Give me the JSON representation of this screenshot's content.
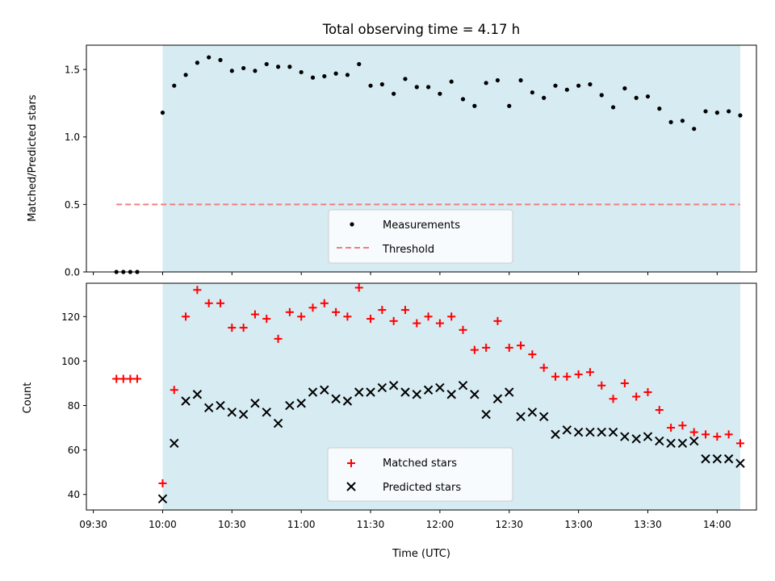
{
  "chart_data": [
    {
      "type": "scatter",
      "title": "Total observing time = 4.17 h",
      "xlabel": "",
      "ylabel": "Matched/Predicted stars",
      "ylim": [
        0,
        1.68
      ],
      "yticks": [
        "0.0",
        "0.5",
        "1.0",
        "1.5"
      ],
      "shaded_span": [
        "10:00",
        "14:10"
      ],
      "legend": "lower center",
      "series": [
        {
          "name": "Measurements",
          "marker": "dot",
          "color": "#000000",
          "x": [
            "09:40",
            "09:43",
            "09:46",
            "09:49",
            "10:00",
            "10:05",
            "10:10",
            "10:15",
            "10:20",
            "10:25",
            "10:30",
            "10:35",
            "10:40",
            "10:45",
            "10:50",
            "10:55",
            "11:00",
            "11:05",
            "11:10",
            "11:15",
            "11:20",
            "11:25",
            "11:30",
            "11:35",
            "11:40",
            "11:45",
            "11:50",
            "11:55",
            "12:00",
            "12:05",
            "12:10",
            "12:15",
            "12:20",
            "12:25",
            "12:30",
            "12:35",
            "12:40",
            "12:45",
            "12:50",
            "12:55",
            "13:00",
            "13:05",
            "13:10",
            "13:15",
            "13:20",
            "13:25",
            "13:30",
            "13:35",
            "13:40",
            "13:45",
            "13:50",
            "13:55",
            "14:00",
            "14:05",
            "14:10"
          ],
          "y": [
            0.0,
            0.0,
            0.0,
            0.0,
            1.18,
            1.38,
            1.46,
            1.55,
            1.59,
            1.57,
            1.49,
            1.51,
            1.49,
            1.54,
            1.52,
            1.52,
            1.48,
            1.44,
            1.45,
            1.47,
            1.46,
            1.54,
            1.38,
            1.39,
            1.32,
            1.43,
            1.37,
            1.37,
            1.32,
            1.41,
            1.28,
            1.23,
            1.4,
            1.42,
            1.23,
            1.42,
            1.33,
            1.29,
            1.38,
            1.35,
            1.38,
            1.39,
            1.31,
            1.22,
            1.36,
            1.29,
            1.3,
            1.21,
            1.11,
            1.12,
            1.06,
            1.19,
            1.18,
            1.19,
            1.16
          ]
        },
        {
          "name": "Threshold",
          "marker": "dashed-line",
          "color": "#f08080",
          "x": [
            "09:40",
            "14:10"
          ],
          "y": [
            0.5,
            0.5
          ]
        }
      ]
    },
    {
      "type": "scatter",
      "title": "",
      "xlabel": "Time (UTC)",
      "ylabel": "Count",
      "ylim": [
        33,
        135
      ],
      "yticks": [
        "40",
        "60",
        "80",
        "100",
        "120"
      ],
      "xticks": [
        "09:30",
        "10:00",
        "10:30",
        "11:00",
        "11:30",
        "12:00",
        "12:30",
        "13:00",
        "13:30",
        "14:00"
      ],
      "shaded_span": [
        "10:00",
        "14:10"
      ],
      "legend": "lower center",
      "series": [
        {
          "name": "Matched stars",
          "marker": "plus",
          "color": "#ff0000",
          "x": [
            "09:40",
            "09:43",
            "09:46",
            "09:49",
            "10:00",
            "10:05",
            "10:10",
            "10:15",
            "10:20",
            "10:25",
            "10:30",
            "10:35",
            "10:40",
            "10:45",
            "10:50",
            "10:55",
            "11:00",
            "11:05",
            "11:10",
            "11:15",
            "11:20",
            "11:25",
            "11:30",
            "11:35",
            "11:40",
            "11:45",
            "11:50",
            "11:55",
            "12:00",
            "12:05",
            "12:10",
            "12:15",
            "12:20",
            "12:25",
            "12:30",
            "12:35",
            "12:40",
            "12:45",
            "12:50",
            "12:55",
            "13:00",
            "13:05",
            "13:10",
            "13:15",
            "13:20",
            "13:25",
            "13:30",
            "13:35",
            "13:40",
            "13:45",
            "13:50",
            "13:55",
            "14:00",
            "14:05",
            "14:10"
          ],
          "y": [
            92,
            92,
            92,
            92,
            45,
            87,
            120,
            132,
            126,
            126,
            115,
            115,
            121,
            119,
            110,
            122,
            120,
            124,
            126,
            122,
            120,
            133,
            119,
            123,
            118,
            123,
            117,
            120,
            117,
            120,
            114,
            105,
            106,
            118,
            106,
            107,
            103,
            97,
            93,
            93,
            94,
            95,
            89,
            83,
            90,
            84,
            86,
            78,
            70,
            71,
            68,
            67,
            66,
            67,
            63
          ]
        },
        {
          "name": "Predicted stars",
          "marker": "x",
          "color": "#000000",
          "x": [
            "10:00",
            "10:05",
            "10:10",
            "10:15",
            "10:20",
            "10:25",
            "10:30",
            "10:35",
            "10:40",
            "10:45",
            "10:50",
            "10:55",
            "11:00",
            "11:05",
            "11:10",
            "11:15",
            "11:20",
            "11:25",
            "11:30",
            "11:35",
            "11:40",
            "11:45",
            "11:50",
            "11:55",
            "12:00",
            "12:05",
            "12:10",
            "12:15",
            "12:20",
            "12:25",
            "12:30",
            "12:35",
            "12:40",
            "12:45",
            "12:50",
            "12:55",
            "13:00",
            "13:05",
            "13:10",
            "13:15",
            "13:20",
            "13:25",
            "13:30",
            "13:35",
            "13:40",
            "13:45",
            "13:50",
            "13:55",
            "14:00",
            "14:05",
            "14:10"
          ],
          "y": [
            38,
            63,
            82,
            85,
            79,
            80,
            77,
            76,
            81,
            77,
            72,
            80,
            81,
            86,
            87,
            83,
            82,
            86,
            86,
            88,
            89,
            86,
            85,
            87,
            88,
            85,
            89,
            85,
            76,
            83,
            86,
            75,
            77,
            75,
            67,
            69,
            68,
            68,
            68,
            68,
            66,
            65,
            66,
            64,
            63,
            63,
            64,
            56,
            56,
            56,
            54
          ]
        }
      ]
    }
  ]
}
